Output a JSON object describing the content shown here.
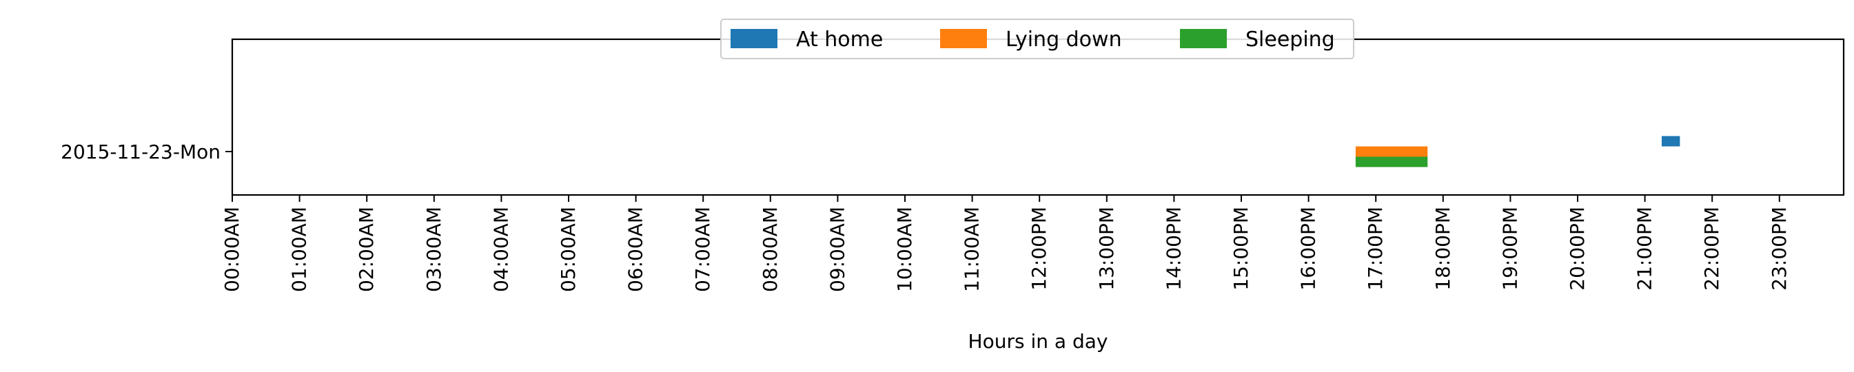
{
  "chart_data": {
    "type": "bar",
    "orientation": "horizontal-timeline",
    "title": "",
    "xlabel": "Hours in a day",
    "ylabel": "",
    "xlim": [
      0,
      24
    ],
    "xticks": [
      "00:00AM",
      "01:00AM",
      "02:00AM",
      "03:00AM",
      "04:00AM",
      "05:00AM",
      "06:00AM",
      "07:00AM",
      "08:00AM",
      "09:00AM",
      "10:00AM",
      "11:00AM",
      "12:00PM",
      "13:00PM",
      "14:00PM",
      "15:00PM",
      "16:00PM",
      "17:00PM",
      "18:00PM",
      "19:00PM",
      "20:00PM",
      "21:00PM",
      "22:00PM",
      "23:00PM"
    ],
    "categories": [
      "2015-11-23-Mon"
    ],
    "grid": false,
    "legend_position": "top-center",
    "series": [
      {
        "name": "At home",
        "color": "#1f77b4",
        "row_offset": -0.15,
        "intervals": [
          [
            21.25,
            21.52
          ]
        ]
      },
      {
        "name": "Lying down",
        "color": "#ff7f0e",
        "row_offset": 0.0,
        "intervals": [
          [
            16.7,
            17.77
          ]
        ]
      },
      {
        "name": "Sleeping",
        "color": "#2ca02c",
        "row_offset": 0.15,
        "intervals": [
          [
            16.7,
            17.77
          ]
        ]
      }
    ]
  }
}
